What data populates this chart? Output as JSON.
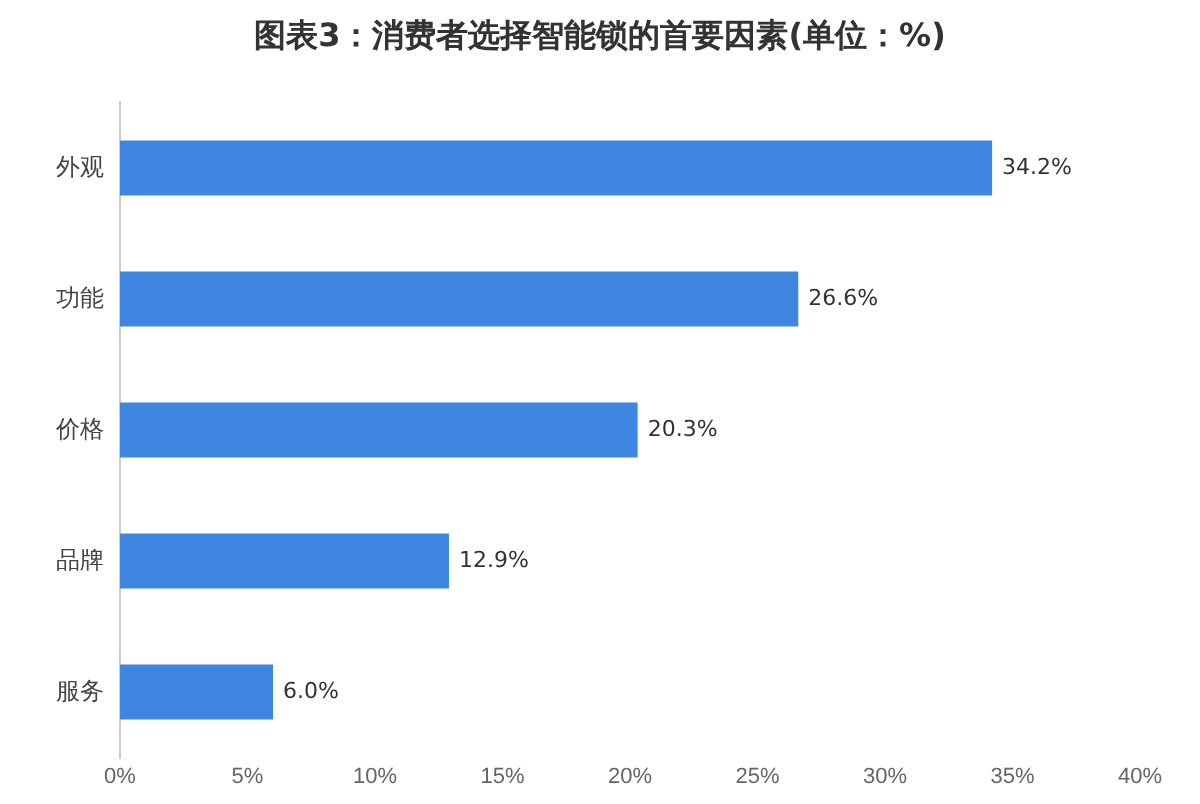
{
  "chart_data": {
    "type": "bar",
    "orientation": "horizontal",
    "title": "图表3：消费者选择智能锁的首要因素(单位：%)",
    "categories": [
      "外观",
      "功能",
      "价格",
      "品牌",
      "服务"
    ],
    "values": [
      34.2,
      26.6,
      20.3,
      12.9,
      6.0
    ],
    "value_labels": [
      "34.2%",
      "26.6%",
      "20.3%",
      "12.9%",
      "6.0%"
    ],
    "color": "#3f86e0",
    "xlim": [
      0,
      40
    ],
    "xticks": [
      {
        "value": 0,
        "label": "0%"
      },
      {
        "value": 5,
        "label": "5%"
      },
      {
        "value": 10,
        "label": "10%"
      },
      {
        "value": 15,
        "label": "15%"
      },
      {
        "value": 20,
        "label": "20%"
      },
      {
        "value": 25,
        "label": "25%"
      },
      {
        "value": 30,
        "label": "30%"
      },
      {
        "value": 35,
        "label": "35%"
      },
      {
        "value": 40,
        "label": "40%"
      }
    ],
    "grid": false,
    "legend": false
  }
}
